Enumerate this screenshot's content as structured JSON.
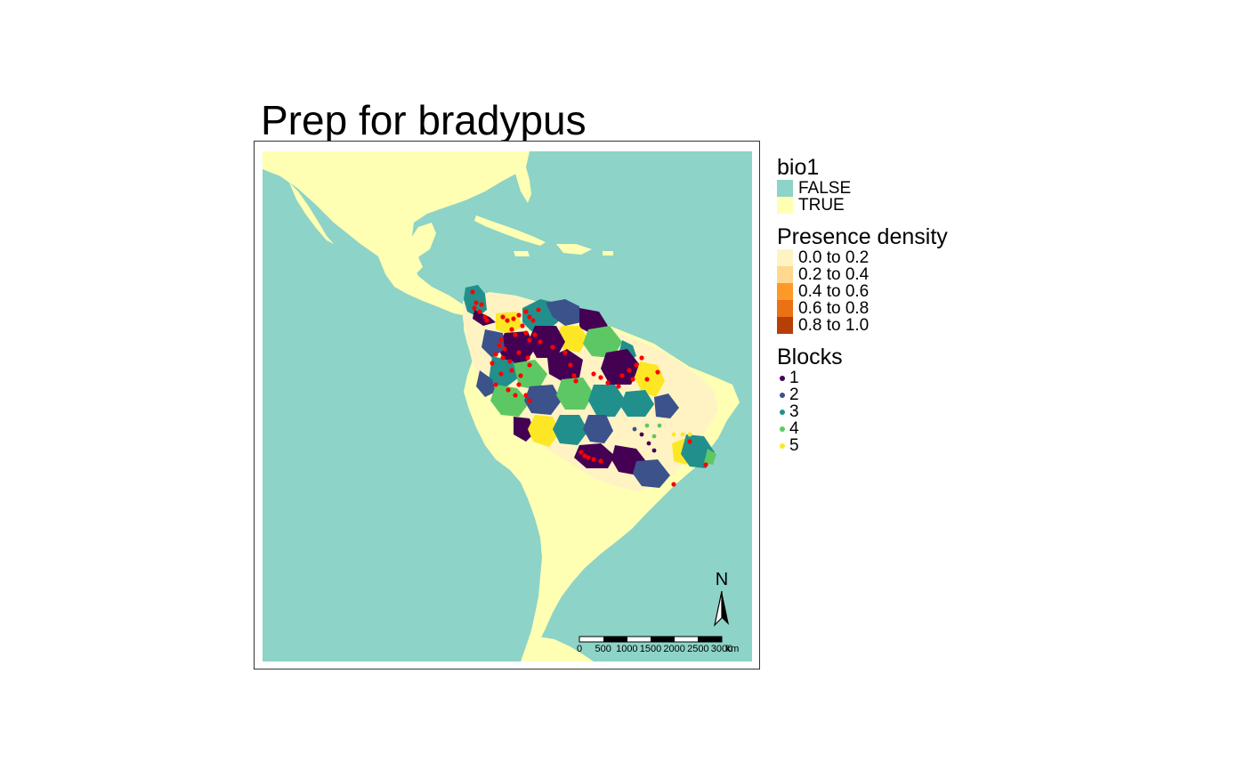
{
  "title": "Prep for bradypus",
  "legend": {
    "bio1": {
      "title": "bio1",
      "items": [
        {
          "label": "FALSE",
          "color": "#8dd3c7"
        },
        {
          "label": "TRUE",
          "color": "#ffffb3"
        }
      ]
    },
    "presence": {
      "title": "Presence density",
      "items": [
        {
          "label": "0.0 to 0.2",
          "color": "#fff3c4"
        },
        {
          "label": "0.2 to 0.4",
          "color": "#fed98e"
        },
        {
          "label": "0.4 to 0.6",
          "color": "#fe9929"
        },
        {
          "label": "0.6 to 0.8",
          "color": "#ec7014"
        },
        {
          "label": "0.8 to 1.0",
          "color": "#b63f07"
        }
      ]
    },
    "blocks": {
      "title": "Blocks",
      "items": [
        {
          "label": "1",
          "color": "#440154"
        },
        {
          "label": "2",
          "color": "#3b528b"
        },
        {
          "label": "3",
          "color": "#21908c"
        },
        {
          "label": "4",
          "color": "#5dc863"
        },
        {
          "label": "5",
          "color": "#fde725"
        }
      ]
    }
  },
  "north_arrow": {
    "label": "N"
  },
  "scale_bar": {
    "ticks": [
      "0",
      "500",
      "1000",
      "1500",
      "2000",
      "2500",
      "3000"
    ],
    "unit": "km"
  },
  "presence_points_color": "#ff0000",
  "colors": {
    "sea": "#8dd3c7",
    "land": "#ffffb3"
  }
}
